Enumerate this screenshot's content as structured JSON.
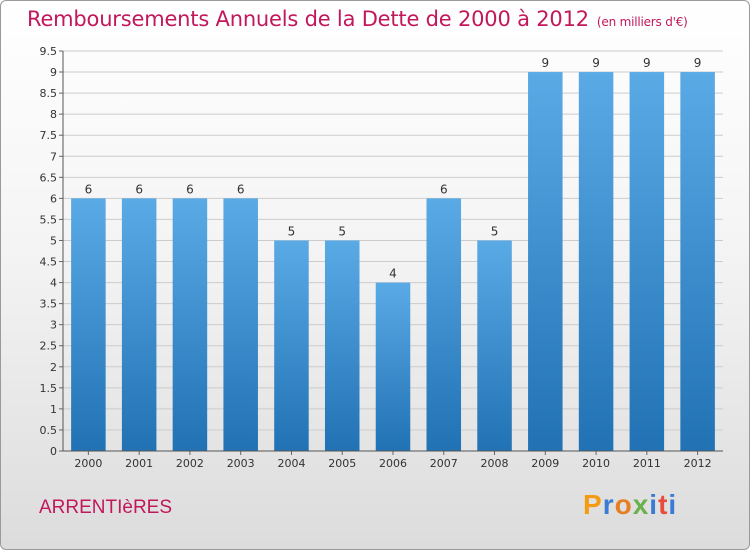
{
  "header": {
    "title": "Remboursements Annuels de la Dette de 2000 à 2012",
    "unit": "(en milliers d'€)"
  },
  "commune": "ARRENTIèRES",
  "logo": {
    "text": "Proxiti",
    "colors": [
      "#f39c12",
      "#3a7bd5",
      "#e67e22",
      "#6ab04c",
      "#3a7bd5",
      "#e74c3c",
      "#3a7bd5"
    ]
  },
  "chart_data": {
    "type": "bar",
    "categories": [
      "2000",
      "2001",
      "2002",
      "2003",
      "2004",
      "2005",
      "2006",
      "2007",
      "2008",
      "2009",
      "2010",
      "2011",
      "2012"
    ],
    "values": [
      6,
      6,
      6,
      6,
      5,
      5,
      4,
      6,
      5,
      9,
      9,
      9,
      9
    ],
    "data_labels": [
      "6",
      "6",
      "6",
      "6",
      "5",
      "5",
      "4",
      "6",
      "5",
      "9",
      "9",
      "9",
      "9"
    ],
    "y_ticks": [
      "0",
      "0.5",
      "1",
      "1.5",
      "2",
      "2.5",
      "3",
      "3.5",
      "4",
      "4.5",
      "5",
      "5.5",
      "6",
      "6.5",
      "7",
      "7.5",
      "8",
      "8.5",
      "9",
      "9.5"
    ],
    "ylim": [
      0,
      9.5
    ],
    "grid": true,
    "colors": {
      "bar_top": "#5aaae6",
      "bar_bottom": "#2172b4",
      "grid": "#cccccc",
      "text": "#333333"
    }
  }
}
